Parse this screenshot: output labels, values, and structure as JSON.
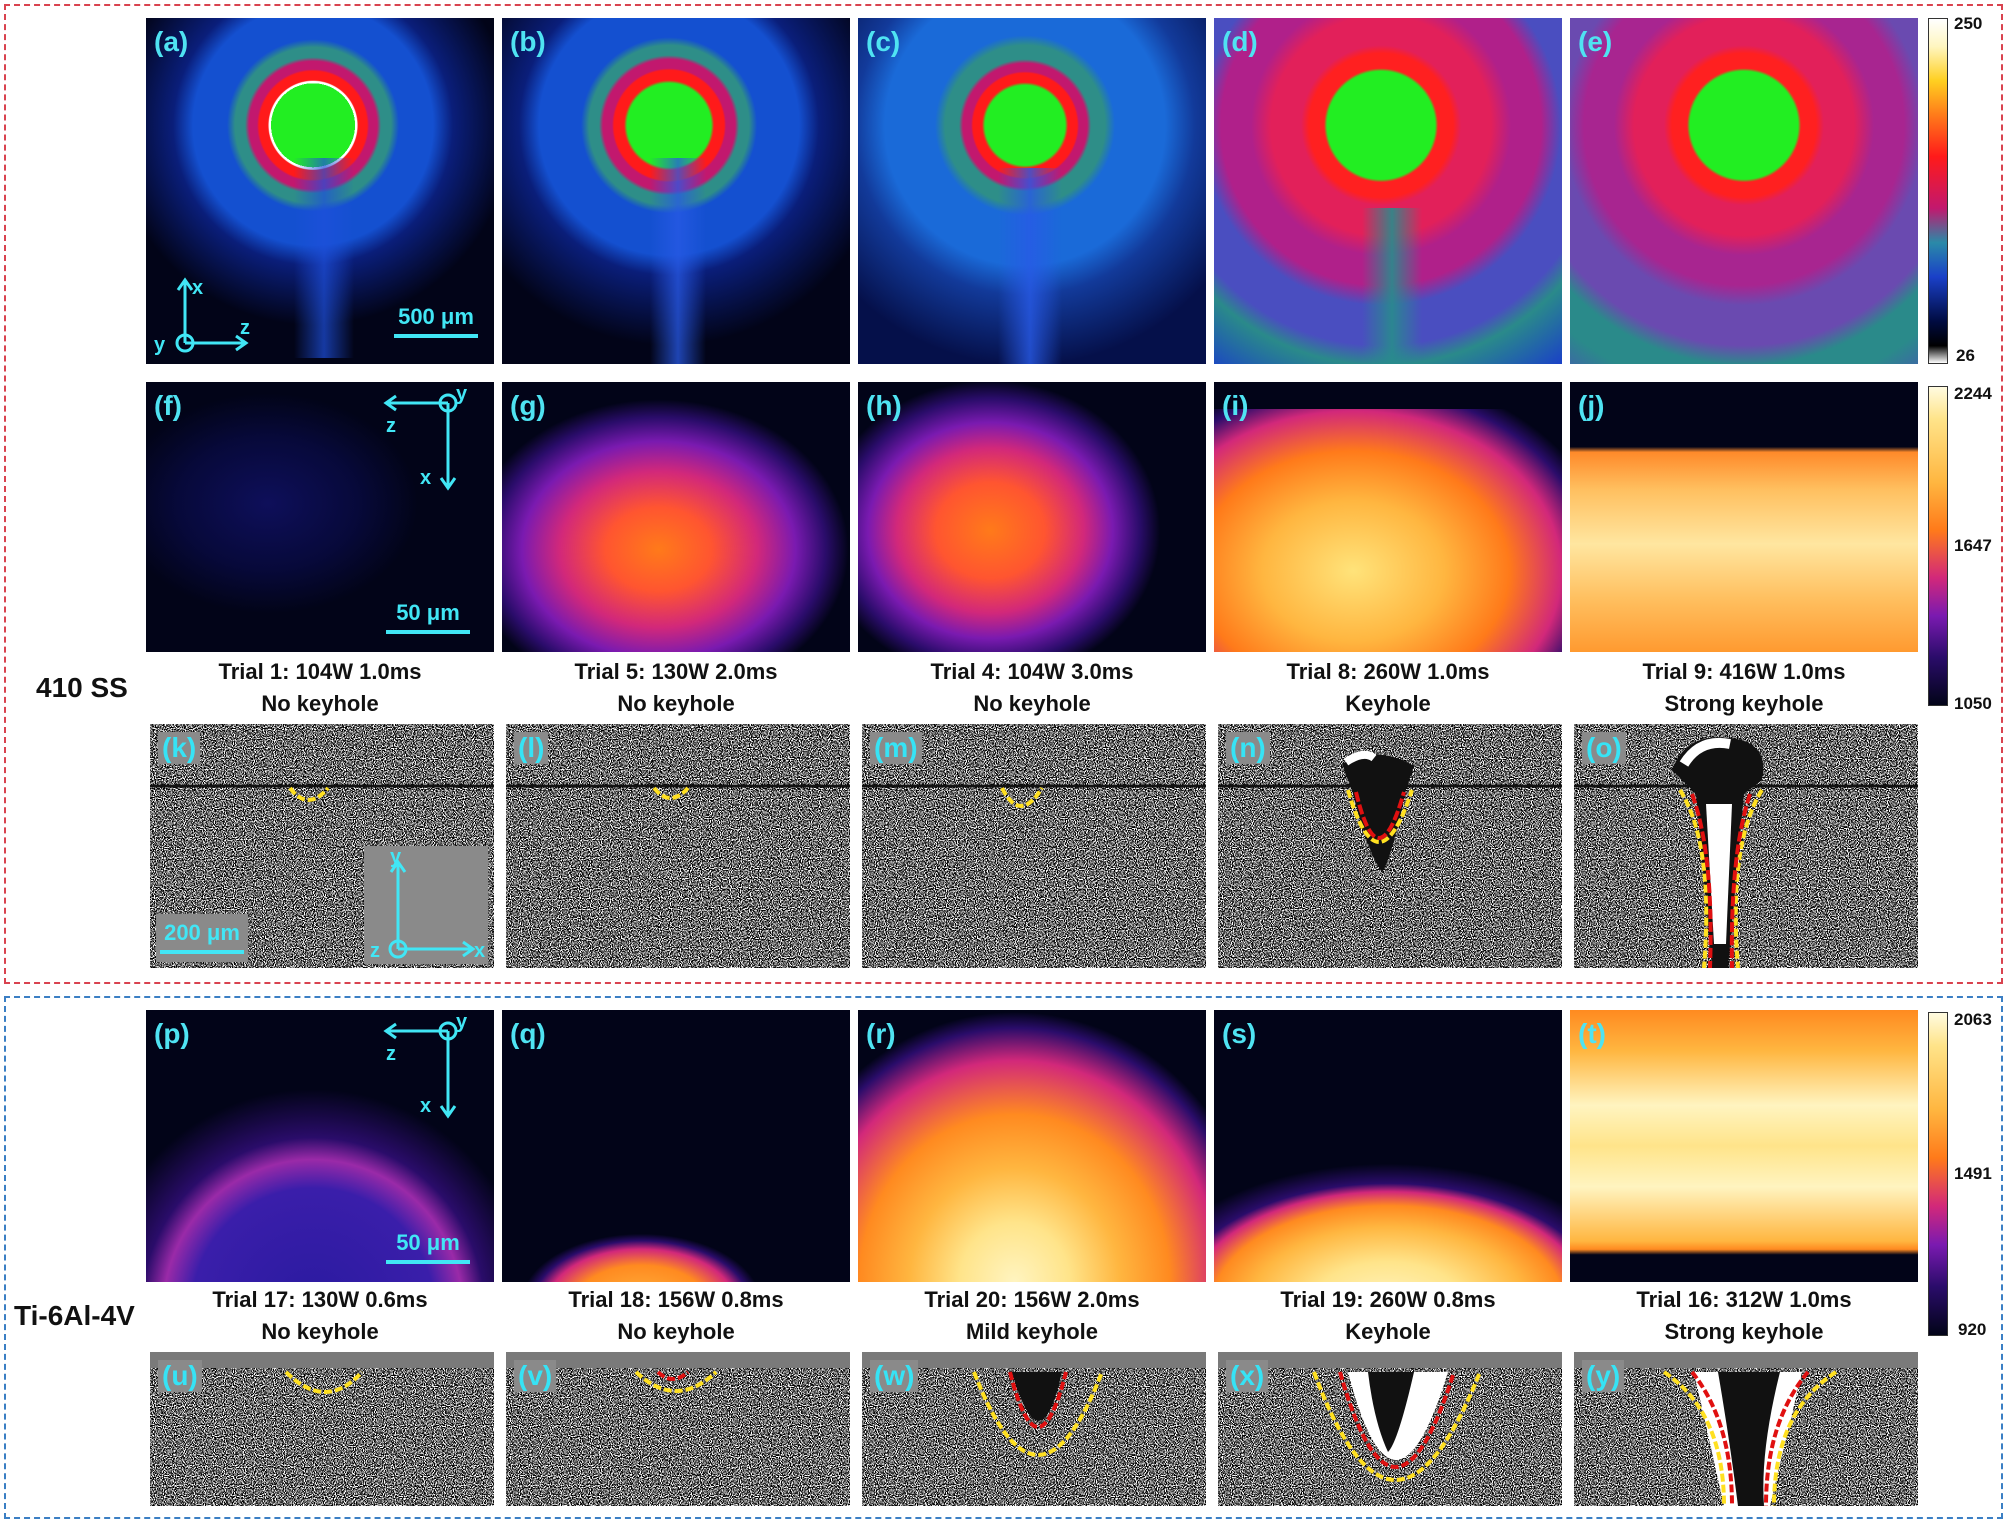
{
  "colors": {
    "ss_frame": "#d9434f",
    "ti_frame": "#3b7fc4",
    "label": "#41e6f5",
    "boundary_outer": "#ffe020",
    "boundary_inner": "#e01010"
  },
  "materials": {
    "ss": "410 SS",
    "ti": "Ti-6Al-4V"
  },
  "row1": {
    "panels": [
      {
        "label": "(a)"
      },
      {
        "label": "(b)"
      },
      {
        "label": "(c)"
      },
      {
        "label": "(d)"
      },
      {
        "label": "(e)"
      }
    ],
    "scale": "500 μm",
    "axes": {
      "x": "x",
      "y": "y",
      "z": "z"
    },
    "colorbar": {
      "max": "250",
      "min": "26"
    }
  },
  "row2": {
    "panels": [
      {
        "label": "(f)"
      },
      {
        "label": "(g)"
      },
      {
        "label": "(h)"
      },
      {
        "label": "(i)"
      },
      {
        "label": "(j)"
      }
    ],
    "scale": "50 μm",
    "axes": {
      "x": "x",
      "y": "y",
      "z": "z"
    },
    "colorbar": {
      "max": "2244",
      "mid": "1647",
      "min": "1050"
    },
    "captions": [
      {
        "trial": "Trial 1: 104W 1.0ms",
        "type": "No keyhole"
      },
      {
        "trial": "Trial 5: 130W 2.0ms",
        "type": "No keyhole"
      },
      {
        "trial": "Trial 4: 104W 3.0ms",
        "type": "No keyhole"
      },
      {
        "trial": "Trial 8: 260W 1.0ms",
        "type": "Keyhole"
      },
      {
        "trial": "Trial 9: 416W 1.0ms",
        "type": "Strong keyhole"
      }
    ]
  },
  "row3": {
    "panels": [
      {
        "label": "(k)"
      },
      {
        "label": "(l)"
      },
      {
        "label": "(m)"
      },
      {
        "label": "(n)"
      },
      {
        "label": "(o)"
      }
    ],
    "scale": "200 μm",
    "axes": {
      "x": "x",
      "y": "y",
      "z": "z"
    }
  },
  "row4": {
    "panels": [
      {
        "label": "(p)"
      },
      {
        "label": "(q)"
      },
      {
        "label": "(r)"
      },
      {
        "label": "(s)"
      },
      {
        "label": "(t)"
      }
    ],
    "scale": "50 μm",
    "axes": {
      "x": "x",
      "y": "y",
      "z": "z"
    },
    "colorbar": {
      "max": "2063",
      "mid": "1491",
      "min": "920"
    },
    "captions": [
      {
        "trial": "Trial 17: 130W 0.6ms",
        "type": "No keyhole"
      },
      {
        "trial": "Trial 18: 156W 0.8ms",
        "type": "No keyhole"
      },
      {
        "trial": "Trial 20: 156W 2.0ms",
        "type": "Mild keyhole"
      },
      {
        "trial": "Trial 19: 260W 0.8ms",
        "type": "Keyhole"
      },
      {
        "trial": "Trial 16: 312W 1.0ms",
        "type": "Strong keyhole"
      }
    ]
  },
  "row5": {
    "panels": [
      {
        "label": "(u)"
      },
      {
        "label": "(v)"
      },
      {
        "label": "(w)"
      },
      {
        "label": "(x)"
      },
      {
        "label": "(y)"
      }
    ]
  }
}
